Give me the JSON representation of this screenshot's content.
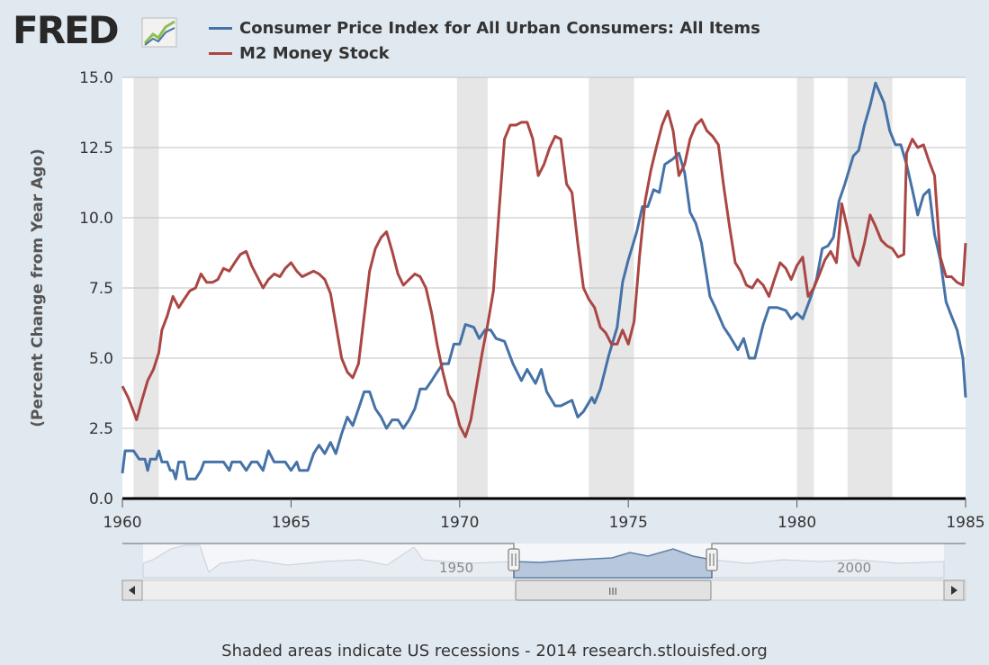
{
  "logo": {
    "text": "FRED"
  },
  "footer": {
    "text": "Shaded areas indicate US recessions - 2014 research.stlouisfed.org"
  },
  "navigator": {
    "labels": [
      "1950",
      "2000"
    ],
    "handle_grip": "III"
  },
  "colors": {
    "background": "#e1e9f0",
    "plot": "#ffffff",
    "recession": "#e6e6e6",
    "cpi": "#4572a7",
    "m2": "#aa4643",
    "grid": "#c0c0c0"
  },
  "chart_data": {
    "type": "line",
    "title": "",
    "xlabel": "",
    "ylabel": "(Percent Change from Year Ago)",
    "xlim": [
      1960,
      1985
    ],
    "ylim": [
      0,
      15
    ],
    "x_ticks": [
      1960,
      1965,
      1970,
      1975,
      1980,
      1985
    ],
    "y_ticks": [
      "0.0",
      "2.5",
      "5.0",
      "7.5",
      "10.0",
      "12.5",
      "15.0"
    ],
    "grid": true,
    "legend_position": "top",
    "recessions": [
      [
        1960.33,
        1961.08
      ],
      [
        1969.92,
        1970.83
      ],
      [
        1973.83,
        1975.17
      ],
      [
        1980.0,
        1980.5
      ],
      [
        1981.5,
        1982.83
      ]
    ],
    "series": [
      {
        "name": "Consumer Price Index for All Urban Consumers: All Items",
        "color": "#4572a7",
        "points": [
          [
            1960.0,
            0.9
          ],
          [
            1960.08,
            1.7
          ],
          [
            1960.33,
            1.7
          ],
          [
            1960.5,
            1.4
          ],
          [
            1960.67,
            1.4
          ],
          [
            1960.75,
            1.0
          ],
          [
            1960.83,
            1.4
          ],
          [
            1961.0,
            1.4
          ],
          [
            1961.08,
            1.7
          ],
          [
            1961.17,
            1.3
          ],
          [
            1961.33,
            1.3
          ],
          [
            1961.42,
            1.0
          ],
          [
            1961.5,
            1.0
          ],
          [
            1961.58,
            0.7
          ],
          [
            1961.67,
            1.3
          ],
          [
            1961.83,
            1.3
          ],
          [
            1961.92,
            0.7
          ],
          [
            1962.17,
            0.7
          ],
          [
            1962.33,
            1.0
          ],
          [
            1962.42,
            1.3
          ],
          [
            1962.67,
            1.3
          ],
          [
            1962.83,
            1.3
          ],
          [
            1963.0,
            1.3
          ],
          [
            1963.17,
            1.0
          ],
          [
            1963.25,
            1.3
          ],
          [
            1963.5,
            1.3
          ],
          [
            1963.67,
            1.0
          ],
          [
            1963.83,
            1.3
          ],
          [
            1964.0,
            1.3
          ],
          [
            1964.17,
            1.0
          ],
          [
            1964.33,
            1.7
          ],
          [
            1964.5,
            1.3
          ],
          [
            1964.83,
            1.3
          ],
          [
            1965.0,
            1.0
          ],
          [
            1965.17,
            1.3
          ],
          [
            1965.25,
            1.0
          ],
          [
            1965.5,
            1.0
          ],
          [
            1965.67,
            1.6
          ],
          [
            1965.83,
            1.9
          ],
          [
            1966.0,
            1.6
          ],
          [
            1966.17,
            2.0
          ],
          [
            1966.33,
            1.6
          ],
          [
            1966.5,
            2.3
          ],
          [
            1966.67,
            2.9
          ],
          [
            1966.83,
            2.6
          ],
          [
            1967.0,
            3.2
          ],
          [
            1967.17,
            3.8
          ],
          [
            1967.33,
            3.8
          ],
          [
            1967.5,
            3.2
          ],
          [
            1967.67,
            2.9
          ],
          [
            1967.83,
            2.5
          ],
          [
            1968.0,
            2.8
          ],
          [
            1968.17,
            2.8
          ],
          [
            1968.33,
            2.5
          ],
          [
            1968.5,
            2.8
          ],
          [
            1968.67,
            3.2
          ],
          [
            1968.83,
            3.9
          ],
          [
            1969.0,
            3.9
          ],
          [
            1969.17,
            4.2
          ],
          [
            1969.33,
            4.5
          ],
          [
            1969.5,
            4.8
          ],
          [
            1969.67,
            4.8
          ],
          [
            1969.83,
            5.5
          ],
          [
            1970.0,
            5.5
          ],
          [
            1970.17,
            6.2
          ],
          [
            1970.42,
            6.1
          ],
          [
            1970.58,
            5.7
          ],
          [
            1970.75,
            6.0
          ],
          [
            1970.92,
            6.0
          ],
          [
            1971.08,
            5.7
          ],
          [
            1971.33,
            5.6
          ],
          [
            1971.58,
            4.8
          ],
          [
            1971.83,
            4.2
          ],
          [
            1972.0,
            4.6
          ],
          [
            1972.25,
            4.1
          ],
          [
            1972.42,
            4.6
          ],
          [
            1972.58,
            3.8
          ],
          [
            1972.83,
            3.3
          ],
          [
            1973.0,
            3.3
          ],
          [
            1973.33,
            3.5
          ],
          [
            1973.5,
            2.9
          ],
          [
            1973.67,
            3.1
          ],
          [
            1973.92,
            3.6
          ],
          [
            1974.0,
            3.4
          ],
          [
            1974.17,
            3.9
          ],
          [
            1974.42,
            5.1
          ],
          [
            1974.67,
            6.1
          ],
          [
            1974.83,
            7.7
          ],
          [
            1975.0,
            8.5
          ],
          [
            1975.25,
            9.5
          ],
          [
            1975.42,
            10.4
          ],
          [
            1975.58,
            10.4
          ],
          [
            1975.75,
            11.0
          ],
          [
            1975.92,
            10.9
          ],
          [
            1976.08,
            11.9
          ],
          [
            1976.33,
            12.1
          ],
          [
            1976.5,
            12.3
          ],
          [
            1976.67,
            11.6
          ],
          [
            1976.83,
            10.2
          ],
          [
            1977.0,
            9.8
          ],
          [
            1977.17,
            9.1
          ],
          [
            1977.42,
            7.2
          ],
          [
            1977.58,
            6.8
          ],
          [
            1977.83,
            6.1
          ],
          [
            1978.0,
            5.8
          ],
          [
            1978.25,
            5.3
          ],
          [
            1978.42,
            5.7
          ],
          [
            1978.58,
            5.0
          ],
          [
            1978.75,
            5.0
          ],
          [
            1979.0,
            6.2
          ],
          [
            1979.17,
            6.8
          ],
          [
            1979.42,
            6.8
          ],
          [
            1979.67,
            6.7
          ],
          [
            1979.83,
            6.4
          ],
          [
            1980.0,
            6.6
          ],
          [
            1980.17,
            6.4
          ],
          [
            1980.42,
            7.2
          ],
          [
            1980.58,
            7.8
          ],
          [
            1980.75,
            8.9
          ],
          [
            1980.92,
            9.0
          ],
          [
            1981.08,
            9.3
          ],
          [
            1981.25,
            10.6
          ],
          [
            1981.42,
            11.2
          ],
          [
            1981.67,
            12.2
          ],
          [
            1981.83,
            12.4
          ],
          [
            1982.0,
            13.3
          ],
          [
            1982.17,
            14.0
          ],
          [
            1982.33,
            14.8
          ],
          [
            1982.58,
            14.1
          ],
          [
            1982.75,
            13.1
          ],
          [
            1982.92,
            12.6
          ],
          [
            1983.08,
            12.6
          ],
          [
            1983.25,
            11.9
          ],
          [
            1983.42,
            11.0
          ],
          [
            1983.58,
            10.1
          ],
          [
            1983.75,
            10.8
          ],
          [
            1983.92,
            11.0
          ],
          [
            1984.08,
            9.4
          ],
          [
            1984.25,
            8.5
          ],
          [
            1984.42,
            7.0
          ],
          [
            1984.58,
            6.5
          ],
          [
            1984.75,
            6.0
          ],
          [
            1984.92,
            5.0
          ],
          [
            1985.0,
            3.6
          ]
        ]
      },
      {
        "name": "M2 Money Stock",
        "color": "#aa4643",
        "points": [
          [
            1960.0,
            4.0
          ],
          [
            1960.17,
            3.6
          ],
          [
            1960.33,
            3.1
          ],
          [
            1960.42,
            2.8
          ],
          [
            1960.58,
            3.5
          ],
          [
            1960.75,
            4.2
          ],
          [
            1960.92,
            4.6
          ],
          [
            1961.08,
            5.2
          ],
          [
            1961.17,
            6.0
          ],
          [
            1961.33,
            6.5
          ],
          [
            1961.5,
            7.2
          ],
          [
            1961.67,
            6.8
          ],
          [
            1961.83,
            7.1
          ],
          [
            1962.0,
            7.4
          ],
          [
            1962.17,
            7.5
          ],
          [
            1962.33,
            8.0
          ],
          [
            1962.5,
            7.7
          ],
          [
            1962.67,
            7.7
          ],
          [
            1962.83,
            7.8
          ],
          [
            1963.0,
            8.2
          ],
          [
            1963.17,
            8.1
          ],
          [
            1963.33,
            8.4
          ],
          [
            1963.5,
            8.7
          ],
          [
            1963.67,
            8.8
          ],
          [
            1963.83,
            8.3
          ],
          [
            1964.0,
            7.9
          ],
          [
            1964.17,
            7.5
          ],
          [
            1964.33,
            7.8
          ],
          [
            1964.5,
            8.0
          ],
          [
            1964.67,
            7.9
          ],
          [
            1964.83,
            8.2
          ],
          [
            1965.0,
            8.4
          ],
          [
            1965.17,
            8.1
          ],
          [
            1965.33,
            7.9
          ],
          [
            1965.5,
            8.0
          ],
          [
            1965.67,
            8.1
          ],
          [
            1965.83,
            8.0
          ],
          [
            1966.0,
            7.8
          ],
          [
            1966.17,
            7.3
          ],
          [
            1966.33,
            6.2
          ],
          [
            1966.5,
            5.0
          ],
          [
            1966.67,
            4.5
          ],
          [
            1966.83,
            4.3
          ],
          [
            1967.0,
            4.8
          ],
          [
            1967.17,
            6.5
          ],
          [
            1967.33,
            8.1
          ],
          [
            1967.5,
            8.9
          ],
          [
            1967.67,
            9.3
          ],
          [
            1967.83,
            9.5
          ],
          [
            1968.0,
            8.8
          ],
          [
            1968.17,
            8.0
          ],
          [
            1968.33,
            7.6
          ],
          [
            1968.5,
            7.8
          ],
          [
            1968.67,
            8.0
          ],
          [
            1968.83,
            7.9
          ],
          [
            1969.0,
            7.5
          ],
          [
            1969.17,
            6.6
          ],
          [
            1969.33,
            5.5
          ],
          [
            1969.5,
            4.5
          ],
          [
            1969.67,
            3.7
          ],
          [
            1969.83,
            3.4
          ],
          [
            1970.0,
            2.6
          ],
          [
            1970.17,
            2.2
          ],
          [
            1970.33,
            2.8
          ],
          [
            1970.5,
            4.0
          ],
          [
            1970.67,
            5.2
          ],
          [
            1970.83,
            6.2
          ],
          [
            1971.0,
            7.4
          ],
          [
            1971.17,
            10.3
          ],
          [
            1971.33,
            12.8
          ],
          [
            1971.5,
            13.3
          ],
          [
            1971.67,
            13.3
          ],
          [
            1971.83,
            13.4
          ],
          [
            1972.0,
            13.4
          ],
          [
            1972.17,
            12.8
          ],
          [
            1972.33,
            11.5
          ],
          [
            1972.5,
            11.9
          ],
          [
            1972.67,
            12.5
          ],
          [
            1972.83,
            12.9
          ],
          [
            1973.0,
            12.8
          ],
          [
            1973.17,
            11.2
          ],
          [
            1973.33,
            10.9
          ],
          [
            1973.5,
            9.1
          ],
          [
            1973.67,
            7.5
          ],
          [
            1973.83,
            7.1
          ],
          [
            1974.0,
            6.8
          ],
          [
            1974.17,
            6.1
          ],
          [
            1974.33,
            5.9
          ],
          [
            1974.5,
            5.5
          ],
          [
            1974.67,
            5.5
          ],
          [
            1974.83,
            6.0
          ],
          [
            1975.0,
            5.5
          ],
          [
            1975.17,
            6.3
          ],
          [
            1975.33,
            8.6
          ],
          [
            1975.5,
            10.6
          ],
          [
            1975.67,
            11.7
          ],
          [
            1975.83,
            12.5
          ],
          [
            1976.0,
            13.3
          ],
          [
            1976.17,
            13.8
          ],
          [
            1976.33,
            13.1
          ],
          [
            1976.5,
            11.5
          ],
          [
            1976.67,
            11.9
          ],
          [
            1976.83,
            12.8
          ],
          [
            1977.0,
            13.3
          ],
          [
            1977.17,
            13.5
          ],
          [
            1977.33,
            13.1
          ],
          [
            1977.5,
            12.9
          ],
          [
            1977.67,
            12.6
          ],
          [
            1977.83,
            11.1
          ],
          [
            1978.0,
            9.7
          ],
          [
            1978.17,
            8.4
          ],
          [
            1978.33,
            8.1
          ],
          [
            1978.5,
            7.6
          ],
          [
            1978.67,
            7.5
          ],
          [
            1978.83,
            7.8
          ],
          [
            1979.0,
            7.6
          ],
          [
            1979.17,
            7.2
          ],
          [
            1979.33,
            7.8
          ],
          [
            1979.5,
            8.4
          ],
          [
            1979.67,
            8.2
          ],
          [
            1979.83,
            7.8
          ],
          [
            1980.0,
            8.3
          ],
          [
            1980.17,
            8.6
          ],
          [
            1980.33,
            7.2
          ],
          [
            1980.5,
            7.5
          ],
          [
            1980.67,
            8.0
          ],
          [
            1980.83,
            8.5
          ],
          [
            1981.0,
            8.8
          ],
          [
            1981.17,
            8.4
          ],
          [
            1981.33,
            10.5
          ],
          [
            1981.5,
            9.6
          ],
          [
            1981.67,
            8.6
          ],
          [
            1981.83,
            8.3
          ],
          [
            1982.0,
            9.1
          ],
          [
            1982.17,
            10.1
          ],
          [
            1982.33,
            9.7
          ],
          [
            1982.5,
            9.2
          ],
          [
            1982.67,
            9.0
          ],
          [
            1982.83,
            8.9
          ],
          [
            1983.0,
            8.6
          ],
          [
            1983.17,
            8.7
          ],
          [
            1983.25,
            12.3
          ],
          [
            1983.42,
            12.8
          ],
          [
            1983.58,
            12.5
          ],
          [
            1983.75,
            12.6
          ],
          [
            1983.92,
            12.0
          ],
          [
            1984.08,
            11.5
          ],
          [
            1984.25,
            8.6
          ],
          [
            1984.42,
            7.9
          ],
          [
            1984.58,
            7.9
          ],
          [
            1984.75,
            7.7
          ],
          [
            1984.92,
            7.6
          ],
          [
            1985.0,
            9.1
          ]
        ]
      }
    ]
  }
}
